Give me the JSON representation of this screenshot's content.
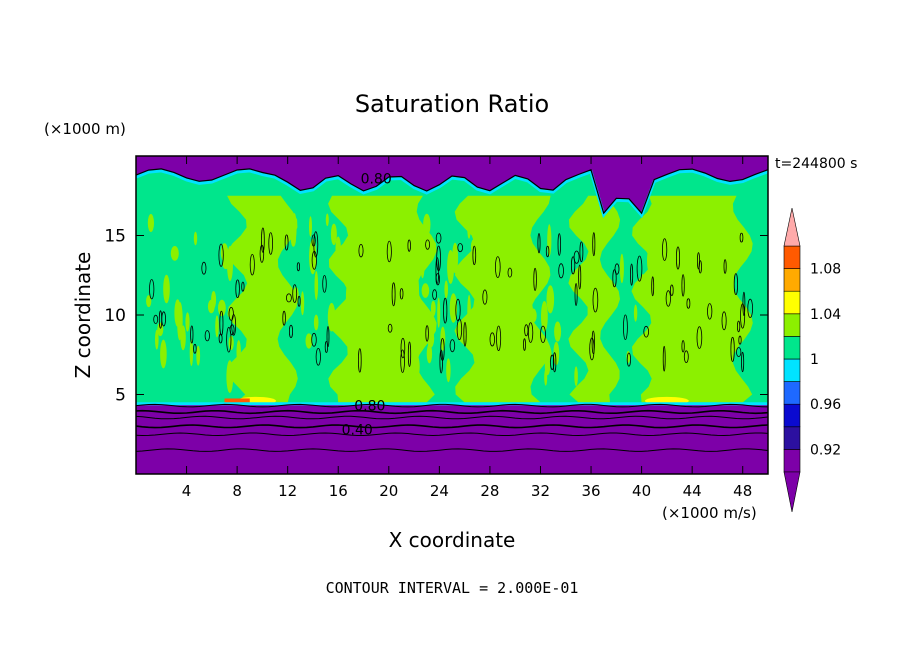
{
  "chart_data": {
    "type": "contour",
    "title": "Saturation Ratio",
    "xlabel": "X coordinate",
    "ylabel": "Z coordinate",
    "x_unit": "(×1000 m/s)",
    "y_unit": "(×1000 m)",
    "time_label": "t=244800 s",
    "footer": "CONTOUR INTERVAL = 2.000E-01",
    "xlim": [
      0,
      50
    ],
    "ylim": [
      0,
      20
    ],
    "x_ticks": [
      4,
      8,
      12,
      16,
      20,
      24,
      28,
      32,
      36,
      40,
      44,
      48
    ],
    "y_ticks": [
      5,
      10,
      15
    ],
    "contour_labels": [
      {
        "text": "0.80",
        "x": 19.0,
        "z": 18.6
      },
      {
        "text": "0.80",
        "x": 18.5,
        "z": 4.3
      },
      {
        "text": "0.40",
        "x": 17.5,
        "z": 2.8
      }
    ],
    "colorbar": {
      "levels": [
        0.9,
        0.92,
        0.94,
        0.96,
        0.98,
        1.0,
        1.02,
        1.04,
        1.06,
        1.08,
        1.1
      ],
      "colors": [
        "#7d00a8",
        "#2c10a0",
        "#0a0ad0",
        "#1e69ff",
        "#00e3ff",
        "#00e68c",
        "#8cf000",
        "#ffff00",
        "#ffaa00",
        "#ff5a00",
        "#ff1c1c"
      ],
      "under_color": "#7d00a8",
      "over_color": "#ffaaaa",
      "tick_labels": [
        "0.92",
        "0.96",
        "1",
        "1.04",
        "1.08"
      ]
    },
    "colors": {
      "dry": "#7d00a8",
      "near_saturated": "#00e68c",
      "supersaturated": "#8cf000",
      "moist_edge": "#00e3ff",
      "high": "#ffff00",
      "highest": "#ff5a00"
    }
  }
}
